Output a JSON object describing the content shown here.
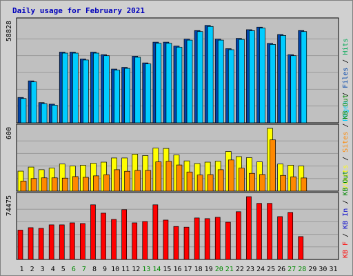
{
  "chart_data": {
    "title": "Daily usage for February 2021",
    "type": "bar",
    "categories": [
      "1",
      "2",
      "3",
      "4",
      "5",
      "6",
      "7",
      "8",
      "9",
      "10",
      "11",
      "12",
      "13",
      "14",
      "15",
      "16",
      "17",
      "18",
      "19",
      "20",
      "21",
      "22",
      "23",
      "24",
      "25",
      "26",
      "27",
      "28",
      "29",
      "30",
      "31"
    ],
    "weekend_days": [
      "6",
      "7",
      "13",
      "14",
      "20",
      "21",
      "27",
      "28"
    ],
    "colors": {
      "frame": "#d0d0d0",
      "panel": "#c0c0c0",
      "grid": "#9a9a9a",
      "title": "#0000bb",
      "day_label": "#000000",
      "weekend_label": "#008800",
      "pages": "#00ccff",
      "files": "#0044aa",
      "hits": "#00aa55",
      "visits": "#ffff00",
      "sites": "#ff8800",
      "kb_out": "#008800",
      "kb_in": "#0000cc",
      "kb_f": "#ff0000"
    },
    "panels": [
      {
        "ymax_label": "58828",
        "ylim": [
          0,
          58828
        ],
        "legend": [
          {
            "text": "Pages",
            "color": "#00ccff"
          },
          {
            "text": "Files",
            "color": "#0044aa"
          },
          {
            "text": "Hits",
            "color": "#00aa55"
          }
        ],
        "series": [
          {
            "name": "Files",
            "color": "#0044aa",
            "values": [
              14820,
              24500,
              11800,
              10900,
              41300,
              41300,
              37300,
              41300,
              39800,
              31400,
              32400,
              38900,
              35000,
              47100,
              47100,
              44800,
              48900,
              53900,
              56900,
              48900,
              43300,
              49300,
              54400,
              55900,
              46400,
              51600,
              39800,
              53900
            ]
          },
          {
            "name": "Pages",
            "color": "#00ccff",
            "values": [
              14200,
              23900,
              11200,
              10300,
              40700,
              40700,
              36700,
              40700,
              39200,
              30800,
              31800,
              38300,
              34400,
              46500,
              46500,
              44200,
              48300,
              53300,
              56300,
              48300,
              42700,
              48700,
              53800,
              55300,
              45800,
              51000,
              39200,
              53300
            ]
          }
        ]
      },
      {
        "ymax_label": "600",
        "ylim": [
          0,
          600
        ],
        "legend": [
          {
            "text": "Visits",
            "color": "#ffff00"
          },
          {
            "text": "Sites",
            "color": "#ff8800"
          },
          {
            "text": "KB Out",
            "color": "#008800"
          }
        ],
        "series": [
          {
            "name": "Visits",
            "color": "#ffff00",
            "values": [
              191,
              230,
              205,
              220,
              259,
              240,
              247,
              267,
              277,
              317,
              317,
              353,
              340,
              411,
              408,
              346,
              289,
              264,
              277,
              286,
              379,
              330,
              320,
              280,
              600,
              259,
              248,
              240
            ]
          },
          {
            "name": "Sites",
            "color": "#ff8800",
            "values": [
              96,
              120,
              127,
              127,
              124,
              139,
              132,
              146,
              157,
              205,
              190,
              198,
              198,
              280,
              285,
              250,
              183,
              154,
              158,
              205,
              298,
              220,
              170,
              159,
              490,
              150,
              137,
              126
            ]
          }
        ]
      },
      {
        "ymax_label": "74475",
        "ylim": [
          0,
          74475
        ],
        "legend": [
          {
            "text": "KB F",
            "color": "#ff0000"
          },
          {
            "text": "KB In",
            "color": "#0000cc"
          },
          {
            "text": "KB Out",
            "color": "#008800"
          }
        ],
        "series": [
          {
            "name": "KB F",
            "color": "#ff0000",
            "values": [
              34800,
              37700,
              36900,
              41000,
              41000,
              43400,
              42600,
              64800,
              54900,
              47500,
              59100,
              43400,
              45000,
              64800,
              46700,
              39100,
              38300,
              49200,
              48400,
              50000,
              44200,
              56600,
              74475,
              66500,
              66500,
              50800,
              55800,
              27100
            ]
          }
        ]
      }
    ]
  }
}
